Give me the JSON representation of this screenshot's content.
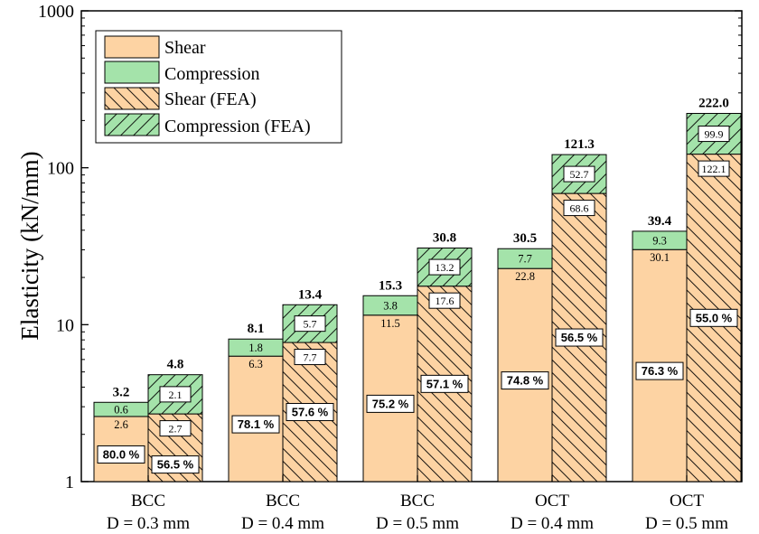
{
  "colors": {
    "shear": "#fdd3a3",
    "compression": "#a4e3aa",
    "shear_fea": "#fdd3a3",
    "compression_fea": "#a4e3aa",
    "hatch": "#000000"
  },
  "chart_data": {
    "type": "bar",
    "stacked": true,
    "yscale": "log",
    "ylim": [
      1,
      1000
    ],
    "ylabel": "Elasticity (kN/mm)",
    "yticks": [
      "1",
      "10",
      "100",
      "1000"
    ],
    "categories": [
      {
        "line1": "BCC",
        "line2": "D = 0.3  mm"
      },
      {
        "line1": "BCC",
        "line2": "D = 0.4 mm"
      },
      {
        "line1": "BCC",
        "line2": "D = 0.5 mm"
      },
      {
        "line1": "OCT",
        "line2": "D = 0.4 mm"
      },
      {
        "line1": "OCT",
        "line2": "D = 0.5 mm"
      }
    ],
    "legend": [
      "Shear",
      "Compression",
      "Shear (FEA)",
      "Compression (FEA)"
    ],
    "legend_position": "top-left",
    "groups": [
      {
        "experiment": {
          "shear": 2.6,
          "compression": 0.6,
          "total": 3.2,
          "shear_label": "2.6",
          "compression_label": "0.6",
          "total_label": "3.2",
          "percent": "80.0 %"
        },
        "fea": {
          "shear": 2.7,
          "compression": 2.1,
          "total": 4.8,
          "shear_label": "2.7",
          "compression_label": "2.1",
          "total_label": "4.8",
          "percent": "56.5 %"
        }
      },
      {
        "experiment": {
          "shear": 6.3,
          "compression": 1.8,
          "total": 8.1,
          "shear_label": "6.3",
          "compression_label": "1.8",
          "total_label": "8.1",
          "percent": "78.1 %"
        },
        "fea": {
          "shear": 7.7,
          "compression": 5.7,
          "total": 13.4,
          "shear_label": "7.7",
          "compression_label": "5.7",
          "total_label": "13.4",
          "percent": "57.6 %"
        }
      },
      {
        "experiment": {
          "shear": 11.5,
          "compression": 3.8,
          "total": 15.3,
          "shear_label": "11.5",
          "compression_label": "3.8",
          "total_label": "15.3",
          "percent": "75.2 %"
        },
        "fea": {
          "shear": 17.6,
          "compression": 13.2,
          "total": 30.8,
          "shear_label": "17.6",
          "compression_label": "13.2",
          "total_label": "30.8",
          "percent": "57.1 %"
        }
      },
      {
        "experiment": {
          "shear": 22.8,
          "compression": 7.7,
          "total": 30.5,
          "shear_label": "22.8",
          "compression_label": "7.7",
          "total_label": "30.5",
          "percent": "74.8 %"
        },
        "fea": {
          "shear": 68.6,
          "compression": 52.7,
          "total": 121.3,
          "shear_label": "68.6",
          "compression_label": "52.7",
          "total_label": "121.3",
          "percent": "56.5 %"
        }
      },
      {
        "experiment": {
          "shear": 30.1,
          "compression": 9.3,
          "total": 39.4,
          "shear_label": "30.1",
          "compression_label": "9.3",
          "total_label": "39.4",
          "percent": "76.3 %"
        },
        "fea": {
          "shear": 122.1,
          "compression": 99.9,
          "total": 222.0,
          "shear_label": "122.1",
          "compression_label": "99.9",
          "total_label": "222.0",
          "percent": "55.0 %"
        }
      }
    ]
  }
}
